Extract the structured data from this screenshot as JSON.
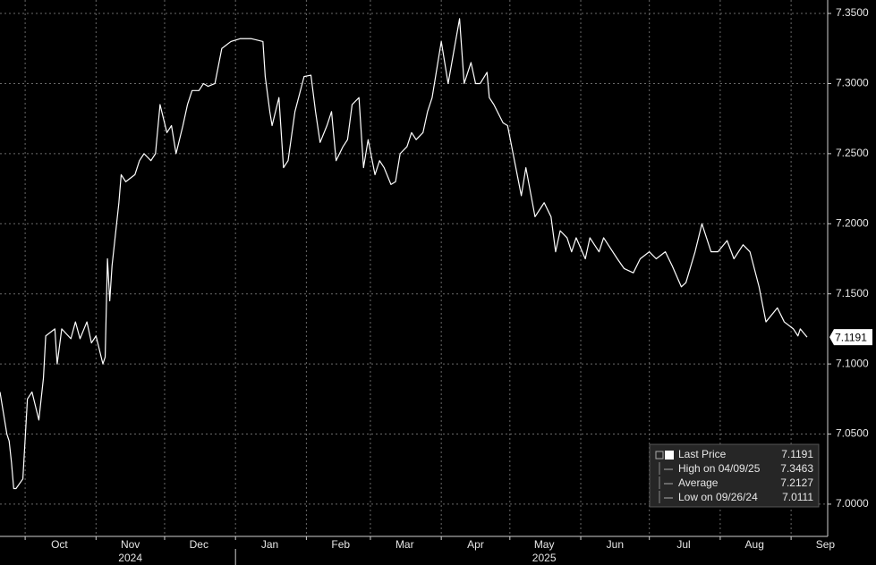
{
  "chart_data": {
    "type": "line",
    "series": [
      {
        "name": "Last Price",
        "color": "#ffffff",
        "x": [
          "2024-09-20",
          "2024-09-23",
          "2024-09-24",
          "2024-09-25",
          "2024-09-26",
          "2024-09-27",
          "2024-09-30",
          "2024-10-02",
          "2024-10-04",
          "2024-10-07",
          "2024-10-09",
          "2024-10-10",
          "2024-10-14",
          "2024-10-15",
          "2024-10-17",
          "2024-10-21",
          "2024-10-23",
          "2024-10-25",
          "2024-10-28",
          "2024-10-30",
          "2024-11-01",
          "2024-11-04",
          "2024-11-05",
          "2024-11-06",
          "2024-11-07",
          "2024-11-08",
          "2024-11-11",
          "2024-11-12",
          "2024-11-14",
          "2024-11-18",
          "2024-11-20",
          "2024-11-22",
          "2024-11-25",
          "2024-11-27",
          "2024-11-29",
          "2024-12-02",
          "2024-12-04",
          "2024-12-06",
          "2024-12-09",
          "2024-12-11",
          "2024-12-13",
          "2024-12-16",
          "2024-12-18",
          "2024-12-20",
          "2024-12-23",
          "2024-12-26",
          "2024-12-30",
          "2025-01-03",
          "2025-01-08",
          "2025-01-13",
          "2025-01-14",
          "2025-01-16",
          "2025-01-17",
          "2025-01-20",
          "2025-01-22",
          "2025-01-24",
          "2025-01-27",
          "2025-01-31",
          "2025-02-03",
          "2025-02-05",
          "2025-02-07",
          "2025-02-10",
          "2025-02-12",
          "2025-02-14",
          "2025-02-17",
          "2025-02-19",
          "2025-02-21",
          "2025-02-24",
          "2025-02-26",
          "2025-02-28",
          "2025-03-03",
          "2025-03-05",
          "2025-03-07",
          "2025-03-10",
          "2025-03-12",
          "2025-03-14",
          "2025-03-17",
          "2025-03-19",
          "2025-03-21",
          "2025-03-24",
          "2025-03-26",
          "2025-03-28",
          "2025-04-01",
          "2025-04-04",
          "2025-04-09",
          "2025-04-11",
          "2025-04-14",
          "2025-04-16",
          "2025-04-18",
          "2025-04-21",
          "2025-04-22",
          "2025-04-24",
          "2025-04-28",
          "2025-04-30",
          "2025-05-06",
          "2025-05-08",
          "2025-05-12",
          "2025-05-14",
          "2025-05-16",
          "2025-05-19",
          "2025-05-21",
          "2025-05-23",
          "2025-05-26",
          "2025-05-28",
          "2025-05-30",
          "2025-06-03",
          "2025-06-05",
          "2025-06-09",
          "2025-06-11",
          "2025-06-13",
          "2025-06-17",
          "2025-06-20",
          "2025-06-24",
          "2025-06-27",
          "2025-07-01",
          "2025-07-04",
          "2025-07-08",
          "2025-07-11",
          "2025-07-15",
          "2025-07-17",
          "2025-07-21",
          "2025-07-24",
          "2025-07-28",
          "2025-07-31",
          "2025-08-04",
          "2025-08-07",
          "2025-08-11",
          "2025-08-14",
          "2025-08-18",
          "2025-08-21",
          "2025-08-26",
          "2025-08-29",
          "2025-09-02",
          "2025-09-04",
          "2025-09-05",
          "2025-09-08"
        ],
        "values": [
          7.08,
          7.05,
          7.045,
          7.03,
          7.0111,
          7.0111,
          7.018,
          7.075,
          7.08,
          7.06,
          7.09,
          7.12,
          7.125,
          7.1,
          7.125,
          7.118,
          7.13,
          7.118,
          7.13,
          7.115,
          7.12,
          7.1,
          7.105,
          7.175,
          7.145,
          7.17,
          7.215,
          7.235,
          7.23,
          7.235,
          7.245,
          7.25,
          7.245,
          7.25,
          7.285,
          7.265,
          7.27,
          7.25,
          7.27,
          7.285,
          7.295,
          7.295,
          7.3,
          7.298,
          7.3,
          7.325,
          7.33,
          7.332,
          7.332,
          7.33,
          7.305,
          7.28,
          7.27,
          7.29,
          7.24,
          7.245,
          7.28,
          7.305,
          7.306,
          7.28,
          7.258,
          7.27,
          7.28,
          7.245,
          7.255,
          7.26,
          7.285,
          7.29,
          7.24,
          7.26,
          7.235,
          7.245,
          7.24,
          7.228,
          7.23,
          7.25,
          7.255,
          7.265,
          7.26,
          7.265,
          7.28,
          7.29,
          7.33,
          7.3,
          7.3463,
          7.3,
          7.315,
          7.3,
          7.3,
          7.308,
          7.29,
          7.285,
          7.272,
          7.27,
          7.22,
          7.24,
          7.205,
          7.21,
          7.215,
          7.205,
          7.18,
          7.195,
          7.19,
          7.18,
          7.19,
          7.175,
          7.19,
          7.18,
          7.19,
          7.185,
          7.175,
          7.168,
          7.165,
          7.175,
          7.18,
          7.175,
          7.18,
          7.17,
          7.155,
          7.158,
          7.18,
          7.2,
          7.18,
          7.18,
          7.188,
          7.175,
          7.185,
          7.18,
          7.155,
          7.13,
          7.14,
          7.13,
          7.125,
          7.12,
          7.125,
          7.1191
        ]
      }
    ],
    "xlim": [
      "2024-09-20",
      "2025-09-17"
    ],
    "xticks": [
      {
        "value": "2024-10-01",
        "label": "Oct"
      },
      {
        "value": "2024-11-01",
        "label": "Nov"
      },
      {
        "value": "2024-12-01",
        "label": "Dec"
      },
      {
        "value": "2025-01-01",
        "label": "Jan"
      },
      {
        "value": "2025-02-01",
        "label": "Feb"
      },
      {
        "value": "2025-03-01",
        "label": "Mar"
      },
      {
        "value": "2025-04-01",
        "label": "Apr"
      },
      {
        "value": "2025-05-01",
        "label": "May"
      },
      {
        "value": "2025-06-01",
        "label": "Jun"
      },
      {
        "value": "2025-07-01",
        "label": "Jul"
      },
      {
        "value": "2025-08-01",
        "label": "Aug"
      },
      {
        "value": "2025-09-01",
        "label": "Sep"
      }
    ],
    "years": [
      {
        "value": "2024-11-01",
        "label": "2024"
      },
      {
        "value": "2025-05-01",
        "label": "2025"
      }
    ],
    "ylim": [
      6.977,
      7.3596
    ],
    "yticks": [
      {
        "value": 7.0,
        "label": "7.0000"
      },
      {
        "value": 7.05,
        "label": "7.0500"
      },
      {
        "value": 7.1,
        "label": "7.1000"
      },
      {
        "value": 7.15,
        "label": "7.1500"
      },
      {
        "value": 7.2,
        "label": "7.2000"
      },
      {
        "value": 7.25,
        "label": "7.2500"
      },
      {
        "value": 7.3,
        "label": "7.3000"
      },
      {
        "value": 7.35,
        "label": "7.3500"
      }
    ],
    "grid": true,
    "legend_position": "lower right",
    "legend": [
      {
        "label": "Last Price",
        "value": 7.1191
      },
      {
        "label": "High on 04/09/25",
        "value": 7.3463
      },
      {
        "label": "Average",
        "value": 7.2127
      },
      {
        "label": "Low on 09/26/24",
        "value": 7.0111
      }
    ]
  }
}
